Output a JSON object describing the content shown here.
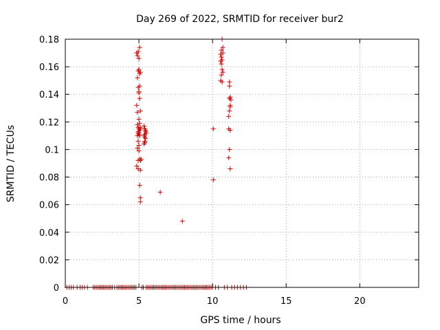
{
  "chart_data": {
    "type": "scatter",
    "title": "Day 269 of 2022, SRMTID for receiver bur2",
    "xlabel": "GPS time / hours",
    "ylabel": "SRMTID / TECUs",
    "xlim": [
      0,
      24
    ],
    "ylim": [
      0,
      0.18
    ],
    "xticks": [
      0,
      5,
      10,
      15,
      20
    ],
    "xtick_labels": [
      "0",
      "5",
      "10",
      "15",
      "20"
    ],
    "yticks": [
      0,
      0.02,
      0.04,
      0.06,
      0.08,
      0.1,
      0.12,
      0.14,
      0.16,
      0.18
    ],
    "ytick_labels": [
      "0",
      "0.02",
      "0.04",
      "0.06",
      "0.08",
      "0.1",
      "0.12",
      "0.14",
      "0.16",
      "0.18"
    ],
    "grid": true,
    "marker": "+",
    "color": "#cc0000",
    "series": [
      {
        "name": "SRMTID",
        "x": [
          4.85,
          4.9,
          4.95,
          5.0,
          5.05,
          4.9,
          4.95,
          5.0,
          5.05,
          5.1,
          4.95,
          5.0,
          5.05,
          5.0,
          5.05,
          5.1,
          4.85,
          4.9,
          5.0,
          4.9,
          4.95,
          5.0,
          4.95,
          5.05,
          5.1,
          5.0,
          5.05,
          5.1,
          4.9,
          4.95,
          5.0,
          5.05,
          4.95,
          5.0,
          4.9,
          5.0,
          4.95,
          5.05,
          5.35,
          5.4,
          5.45,
          5.35,
          5.4,
          5.45,
          5.5,
          5.4,
          5.45,
          5.4,
          5.35,
          5.4,
          5.1,
          5.15,
          4.85,
          4.95,
          5.1,
          5.05,
          5.1,
          5.1,
          6.45,
          7.95,
          10.05,
          10.05,
          10.65,
          10.7,
          10.6,
          10.7,
          10.65,
          10.55,
          10.6,
          10.65,
          10.7,
          10.6,
          10.55,
          10.65,
          10.6,
          10.55,
          11.15,
          11.15,
          11.2,
          11.15,
          11.2,
          11.15,
          11.1,
          11.1,
          11.2,
          11.15,
          11.1,
          11.2,
          11.25,
          11.2
        ],
        "y": [
          0.17,
          0.168,
          0.171,
          0.166,
          0.174,
          0.152,
          0.157,
          0.158,
          0.155,
          0.156,
          0.145,
          0.142,
          0.146,
          0.141,
          0.137,
          0.128,
          0.132,
          0.127,
          0.122,
          0.118,
          0.116,
          0.115,
          0.113,
          0.119,
          0.115,
          0.112,
          0.114,
          0.116,
          0.11,
          0.112,
          0.111,
          0.11,
          0.106,
          0.103,
          0.101,
          0.099,
          0.092,
          0.093,
          0.117,
          0.115,
          0.113,
          0.11,
          0.111,
          0.114,
          0.112,
          0.109,
          0.108,
          0.106,
          0.104,
          0.105,
          0.092,
          0.093,
          0.088,
          0.086,
          0.085,
          0.074,
          0.065,
          0.062,
          0.069,
          0.048,
          0.115,
          0.078,
          0.18,
          0.174,
          0.172,
          0.17,
          0.165,
          0.164,
          0.162,
          0.158,
          0.156,
          0.154,
          0.15,
          0.149,
          0.167,
          0.169,
          0.149,
          0.146,
          0.138,
          0.137,
          0.132,
          0.128,
          0.124,
          0.115,
          0.114,
          0.1,
          0.094,
          0.086,
          0.136,
          0.131
        ],
        "zero_x": [
          0.1,
          0.25,
          0.4,
          0.55,
          0.8,
          1.0,
          1.15,
          1.3,
          1.5,
          1.9,
          2.0,
          2.1,
          2.2,
          2.3,
          2.4,
          2.5,
          2.6,
          2.7,
          2.8,
          2.9,
          3.0,
          3.1,
          3.2,
          3.35,
          3.5,
          3.6,
          3.7,
          3.8,
          3.9,
          4.0,
          4.1,
          4.2,
          4.3,
          4.4,
          4.5,
          4.6,
          4.7,
          4.8,
          5.2,
          5.3,
          5.5,
          5.6,
          5.7,
          5.8,
          5.9,
          6.0,
          6.1,
          6.2,
          6.3,
          6.4,
          6.5,
          6.6,
          6.7,
          6.8,
          6.9,
          7.0,
          7.1,
          7.2,
          7.3,
          7.4,
          7.5,
          7.6,
          7.7,
          7.8,
          7.9,
          8.0,
          8.1,
          8.2,
          8.3,
          8.4,
          8.5,
          8.6,
          8.7,
          8.8,
          8.9,
          9.0,
          9.1,
          9.2,
          9.3,
          9.4,
          9.5,
          9.6,
          9.7,
          9.8,
          9.9,
          10.0,
          10.2,
          10.4,
          10.8,
          11.0,
          11.3,
          11.5,
          11.7,
          11.9,
          12.1,
          12.3
        ]
      }
    ]
  }
}
